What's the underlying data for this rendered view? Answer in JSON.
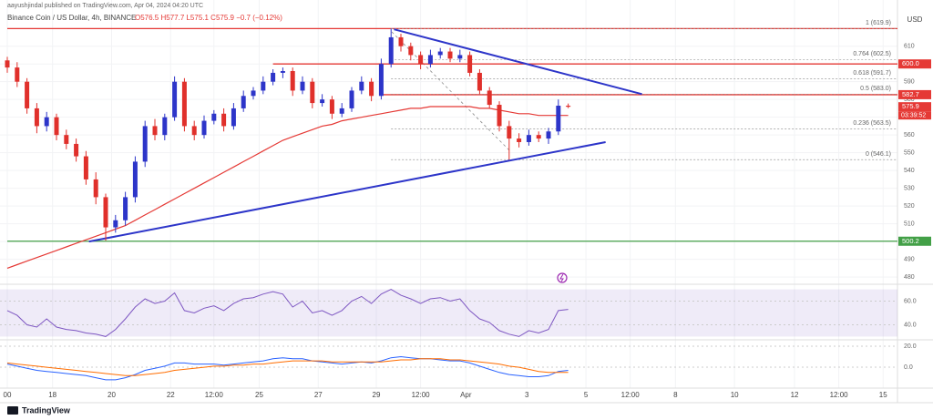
{
  "chart_data": {
    "type": "candlestick",
    "header": "aayushjindal published on TradingView.com, Apr 04, 2024 04:20 UTC",
    "symbol": "Binance Coin / US Dollar, 4h, BINANCE",
    "ohlc": "O576.5 H577.7 L575.1 C575.9 −0.7 (−0.12%)",
    "currency": "USD",
    "countdown": "03:39:52",
    "footer": "TradingView",
    "up_color": "#2d35c9",
    "down_color": "#e0302b",
    "open": [
      602,
      598,
      590,
      575,
      565,
      570,
      560,
      555,
      548,
      535,
      525,
      508,
      512,
      525,
      545,
      565,
      560,
      570,
      590,
      565,
      560,
      568,
      572,
      565,
      575,
      582,
      585,
      590,
      595,
      596,
      585,
      590,
      578,
      580,
      572,
      575,
      585,
      590,
      582,
      600,
      615,
      610,
      605,
      600,
      605,
      607,
      603,
      605,
      595,
      585,
      577,
      565,
      558,
      556,
      560,
      558,
      562,
      576.5
    ],
    "high": [
      604,
      601,
      592,
      578,
      573,
      572,
      563,
      558,
      551,
      539,
      527,
      515,
      528,
      548,
      568,
      569,
      572,
      593,
      592,
      568,
      571,
      574,
      575,
      578,
      585,
      587,
      593,
      597,
      598,
      598,
      593,
      592,
      583,
      582,
      578,
      587,
      593,
      592,
      603,
      619.9,
      617,
      612,
      607,
      608,
      609,
      609,
      608,
      607,
      597,
      587,
      579,
      568,
      561,
      563,
      562,
      564,
      580,
      577.7
    ],
    "low": [
      595,
      587,
      572,
      561,
      562,
      557,
      552,
      545,
      532,
      521,
      500.5,
      505,
      509,
      522,
      542,
      557,
      557,
      568,
      562,
      557,
      558,
      566,
      562,
      563,
      573,
      580,
      583,
      588,
      592,
      582,
      583,
      575,
      576,
      569,
      570,
      573,
      583,
      579,
      580,
      598,
      607,
      602,
      597,
      598,
      603,
      601,
      601,
      593,
      583,
      575,
      562,
      546.1,
      553,
      554,
      556,
      555,
      560,
      575.1
    ],
    "close": [
      598,
      590,
      575,
      565,
      570,
      560,
      555,
      548,
      535,
      525,
      508,
      512,
      525,
      545,
      565,
      560,
      570,
      590,
      565,
      560,
      568,
      572,
      565,
      575,
      582,
      585,
      590,
      595,
      596,
      585,
      590,
      578,
      580,
      572,
      575,
      585,
      590,
      582,
      600,
      615,
      610,
      605,
      600,
      605,
      607,
      603,
      605,
      595,
      585,
      577,
      565,
      558,
      556,
      560,
      558,
      562,
      576.5,
      575.9
    ],
    "ma": {
      "color": "#e53935",
      "values": [
        485,
        487,
        489,
        491,
        493,
        495,
        497,
        499,
        501,
        503,
        505,
        507,
        509,
        512,
        515,
        518,
        521,
        524,
        527,
        530,
        533,
        536,
        539,
        542,
        545,
        548,
        551,
        554,
        557,
        559,
        561,
        563,
        565,
        566,
        568,
        569,
        570,
        571,
        572,
        573,
        574,
        575,
        575,
        576,
        576,
        576,
        576,
        576,
        575,
        575,
        574,
        573,
        572,
        572,
        571,
        571,
        571,
        571
      ]
    },
    "xlim": [
      0,
      90.46
    ],
    "xticks": [
      {
        "value": 0,
        "label": "00"
      },
      {
        "value": 4.6,
        "label": "18"
      },
      {
        "value": 10.6,
        "label": "20"
      },
      {
        "value": 16.6,
        "label": "22"
      },
      {
        "value": 21,
        "label": "12:00"
      },
      {
        "value": 25.6,
        "label": "25"
      },
      {
        "value": 31.6,
        "label": "27"
      },
      {
        "value": 37.5,
        "label": "29"
      },
      {
        "value": 42,
        "label": "12:00"
      },
      {
        "value": 46.6,
        "label": "Apr"
      },
      {
        "value": 52.8,
        "label": "3"
      },
      {
        "value": 58.8,
        "label": "5"
      },
      {
        "value": 63.3,
        "label": "12:00"
      },
      {
        "value": 67.9,
        "label": "8"
      },
      {
        "value": 73.9,
        "label": "10"
      },
      {
        "value": 80,
        "label": "12"
      },
      {
        "value": 84.5,
        "label": "12:00"
      },
      {
        "value": 89,
        "label": "15"
      }
    ],
    "ylim": [
      477,
      636
    ],
    "yticks": [
      480,
      490,
      500,
      510,
      520,
      530,
      540,
      550,
      560,
      570,
      580,
      590,
      600,
      610
    ],
    "levels": [
      {
        "value": 619.9,
        "color": "#e53935",
        "from": 0
      },
      {
        "value": 600,
        "color": "#e53935",
        "from": 27
      },
      {
        "value": 582.7,
        "color": "#e53935",
        "from": 38
      },
      {
        "value": 500.2,
        "color": "#43a047",
        "from": 0
      }
    ],
    "price_labels": [
      {
        "value": 600,
        "label": "600.0",
        "color": "#e53935"
      },
      {
        "value": 582.7,
        "label": "582.7",
        "color": "#e53935"
      },
      {
        "value": 575.9,
        "label": "575.9",
        "color": "#e53935"
      },
      {
        "value": 500.2,
        "label": "500.2",
        "color": "#43a047"
      }
    ],
    "fib_from": 39,
    "fib_levels": [
      {
        "value": 619.9,
        "label": "1 (619.9)"
      },
      {
        "value": 602.5,
        "label": "0.764 (602.5)"
      },
      {
        "value": 591.7,
        "label": "0.618 (591.7)"
      },
      {
        "value": 583.0,
        "label": "0.5 (583.0)"
      },
      {
        "value": 563.5,
        "label": "0.236 (563.5)"
      },
      {
        "value": 546.1,
        "label": "0 (546.1)"
      }
    ],
    "trendlines": [
      {
        "color": "#2d35c9",
        "x": [
          8.3,
          60.8
        ],
        "y": [
          500,
          556
        ]
      },
      {
        "color": "#2d35c9",
        "x": [
          39.3,
          64.5
        ],
        "y": [
          619.5,
          583
        ]
      }
    ],
    "rsi": {
      "color": "#7e57c2",
      "band": [
        30,
        70
      ],
      "ylim": [
        28,
        72
      ],
      "yticks": [
        {
          "value": 60,
          "label": "60.0"
        },
        {
          "value": 40,
          "label": "40.0"
        }
      ],
      "values": [
        52,
        48,
        40,
        38,
        45,
        38,
        36,
        35,
        33,
        32,
        30,
        36,
        45,
        55,
        62,
        58,
        60,
        67,
        52,
        50,
        54,
        56,
        52,
        58,
        62,
        63,
        66,
        68,
        66,
        55,
        60,
        50,
        52,
        48,
        52,
        60,
        64,
        58,
        66,
        70,
        65,
        62,
        58,
        62,
        63,
        60,
        62,
        52,
        45,
        42,
        35,
        32,
        30,
        35,
        33,
        36,
        52,
        53
      ]
    },
    "macd": {
      "ylim": [
        -19,
        24.3
      ],
      "yticks": [
        {
          "value": 20,
          "label": "20.0"
        },
        {
          "value": 0,
          "label": "0.0"
        }
      ],
      "series": [
        {
          "color": "#2962ff",
          "values": [
            3,
            1,
            -1,
            -3,
            -4,
            -5,
            -6,
            -7,
            -8,
            -10,
            -12,
            -12,
            -10,
            -7,
            -3,
            -1,
            1,
            4,
            4,
            3,
            3,
            3,
            2,
            3,
            4,
            5,
            6,
            8,
            9,
            8,
            8,
            6,
            5,
            4,
            3,
            4,
            5,
            4,
            6,
            9,
            10,
            9,
            8,
            8,
            7,
            6,
            6,
            4,
            1,
            -2,
            -5,
            -7,
            -8,
            -9,
            -9,
            -8,
            -4,
            -3
          ]
        },
        {
          "color": "#ff6d00",
          "values": [
            4,
            3,
            2,
            1,
            0,
            -1,
            -2,
            -3,
            -4,
            -5,
            -6,
            -7,
            -8,
            -8,
            -7,
            -6,
            -5,
            -3,
            -2,
            -1,
            0,
            1,
            1,
            2,
            2,
            3,
            3,
            4,
            5,
            6,
            6,
            6,
            6,
            5,
            5,
            5,
            5,
            5,
            5,
            6,
            7,
            7,
            8,
            8,
            8,
            7,
            7,
            6,
            5,
            4,
            3,
            1,
            0,
            -2,
            -4,
            -5,
            -5,
            -5
          ]
        }
      ]
    }
  }
}
